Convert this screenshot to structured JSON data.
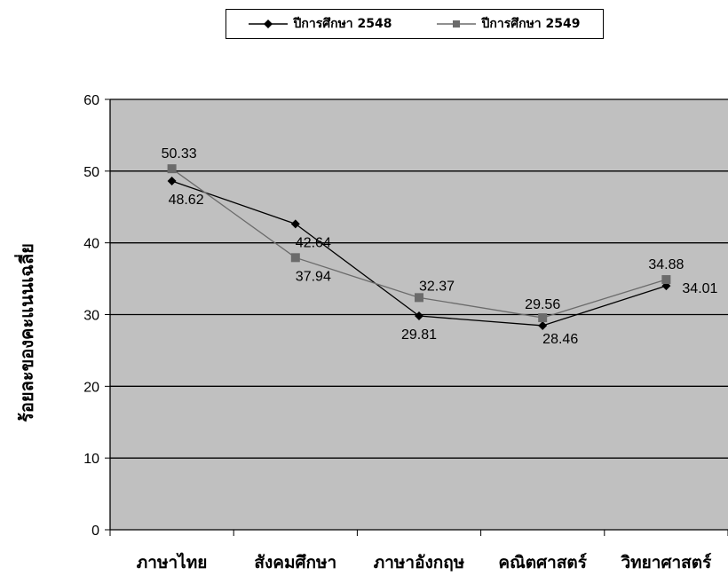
{
  "chart_data": {
    "type": "line",
    "categories": [
      "ภาษาไทย",
      "สังคมศึกษา",
      "ภาษาอังกฤษ",
      "คณิตศาสตร์",
      "วิทยาศาสตร์"
    ],
    "series": [
      {
        "name": "ปีการศึกษา 2548",
        "values": [
          48.62,
          42.64,
          29.81,
          28.46,
          34.01
        ],
        "color": "#000000",
        "marker": "diamond"
      },
      {
        "name": "ปีการศึกษา 2549",
        "values": [
          50.33,
          37.94,
          32.37,
          29.56,
          34.88
        ],
        "color": "#6b6b6b",
        "marker": "square"
      }
    ],
    "ylabel": "ร้อยละของคะแนนเฉลี่ย",
    "xlabel": "",
    "ylim": [
      0,
      60
    ],
    "yticks": [
      0,
      10,
      20,
      30,
      40,
      50,
      60
    ],
    "grid": true,
    "plot_background": "#c0c0c0",
    "legend_position": "top"
  }
}
